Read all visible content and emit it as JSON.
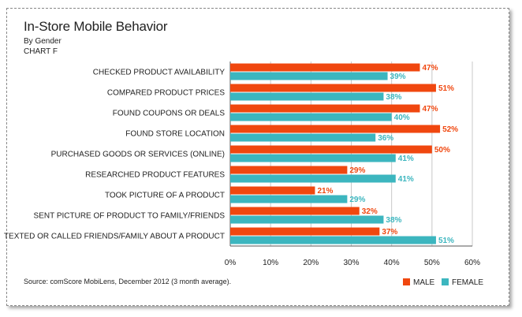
{
  "chart_data": {
    "type": "bar",
    "title": "In-Store Mobile Behavior",
    "subtitle": "By Gender",
    "chart_label": "CHART F",
    "source": "Source: comScore MobiLens, December 2012 (3 month average).",
    "categories": [
      "CHECKED PRODUCT AVAILABILITY",
      "COMPARED PRODUCT PRICES",
      "FOUND COUPONS OR DEALS",
      "FOUND STORE LOCATION",
      "PURCHASED GOODS OR SERVICES (ONLINE)",
      "RESEARCHED PRODUCT FEATURES",
      "TOOK PICTURE OF A PRODUCT",
      "SENT PICTURE OF PRODUCT TO FAMILY/FRIENDS",
      "TEXTED OR CALLED FRIENDS/FAMILY ABOUT A PRODUCT"
    ],
    "series": [
      {
        "name": "MALE",
        "color": "#f0470f",
        "values": [
          47,
          51,
          47,
          52,
          50,
          29,
          21,
          32,
          37
        ]
      },
      {
        "name": "FEMALE",
        "color": "#3cb6bf",
        "values": [
          39,
          38,
          40,
          36,
          41,
          41,
          29,
          38,
          51
        ]
      }
    ],
    "xlim": [
      0,
      60
    ],
    "xticks": [
      "0%",
      "10%",
      "20%",
      "30%",
      "40%",
      "50%",
      "60%"
    ],
    "value_suffix": "%",
    "orientation": "horizontal",
    "grid": true,
    "legend": "bottom-right"
  }
}
